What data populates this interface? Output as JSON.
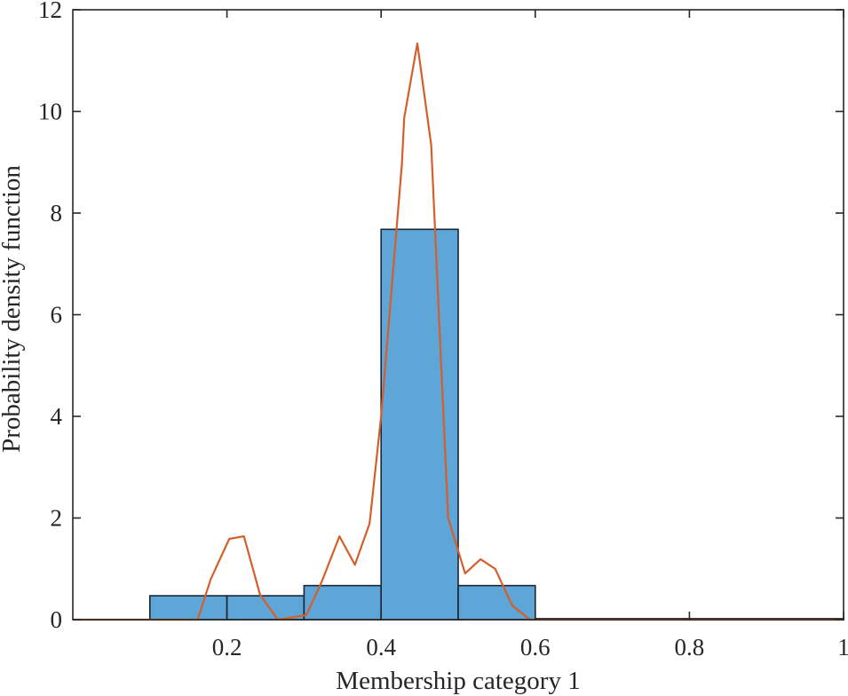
{
  "chart_data": {
    "type": "bar",
    "title": "",
    "xlabel": "Membership category 1",
    "ylabel": "Probability density function",
    "xlim": [
      0,
      1
    ],
    "ylim": [
      0,
      12
    ],
    "grid": false,
    "legend": null,
    "x_ticks": [
      0.2,
      0.4,
      0.6,
      0.8,
      1
    ],
    "x_tick_labels": [
      "0.2",
      "0.4",
      "0.6",
      "0.8",
      "1"
    ],
    "y_ticks": [
      0,
      2,
      4,
      6,
      8,
      10,
      12
    ],
    "y_tick_labels": [
      "0",
      "2",
      "4",
      "6",
      "8",
      "10",
      "12"
    ],
    "series": [
      {
        "name": "Histogram (PDF normalized)",
        "type": "bar",
        "color": "#5ea5d8",
        "edge_color": "#1a2535",
        "bins": [
          {
            "x0": 0.1,
            "x1": 0.2,
            "value": 0.47
          },
          {
            "x0": 0.2,
            "x1": 0.3,
            "value": 0.47
          },
          {
            "x0": 0.3,
            "x1": 0.4,
            "value": 0.67
          },
          {
            "x0": 0.4,
            "x1": 0.5,
            "value": 7.68
          },
          {
            "x0": 0.5,
            "x1": 0.6,
            "value": 0.67
          },
          {
            "x0": 0.6,
            "x1": 1.0,
            "value": 0.02
          }
        ]
      },
      {
        "name": "Density curve",
        "type": "line",
        "color": "#d45f2a",
        "x": [
          0,
          0.162,
          0.179,
          0.203,
          0.222,
          0.243,
          0.266,
          0.303,
          0.323,
          0.346,
          0.366,
          0.385,
          0.4,
          0.427,
          0.43,
          0.447,
          0.465,
          0.487,
          0.509,
          0.529,
          0.548,
          0.57,
          0.593,
          1.0
        ],
        "y": [
          0,
          0,
          0.8,
          1.59,
          1.64,
          0.49,
          0,
          0.09,
          0.75,
          1.64,
          1.08,
          1.89,
          4.0,
          8.96,
          9.87,
          11.34,
          9.34,
          2.0,
          0.91,
          1.19,
          1.0,
          0.28,
          0,
          0
        ]
      }
    ]
  }
}
